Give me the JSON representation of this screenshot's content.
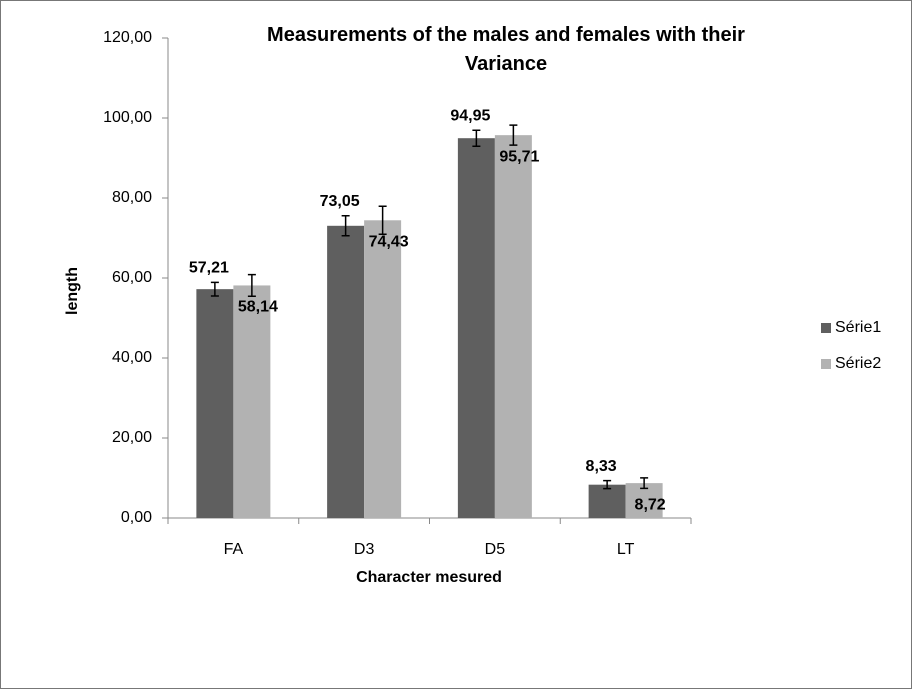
{
  "chart_data": {
    "type": "bar",
    "title": "Measurements of the males and females with their Variance",
    "x_label": "Character mesured",
    "y_label": "length",
    "categories": [
      "FA",
      "D3",
      "D5",
      "LT"
    ],
    "series": [
      {
        "name": "Série1",
        "color": "#5f5f5f",
        "values": [
          57.21,
          73.05,
          94.95,
          8.33
        ],
        "value_labels": [
          "57,21",
          "73,05",
          "94,95",
          "8,33"
        ],
        "errors": [
          1.7,
          2.5,
          2.0,
          1.0
        ]
      },
      {
        "name": "Série2",
        "color": "#b2b2b2",
        "values": [
          58.14,
          74.43,
          95.71,
          8.72
        ],
        "value_labels": [
          "58,14",
          "74,43",
          "95,71",
          "8,72"
        ],
        "errors": [
          2.7,
          3.5,
          2.5,
          1.3
        ]
      }
    ],
    "ylim": [
      0,
      120
    ],
    "yticks": [
      {
        "value": 0,
        "label": "0,00"
      },
      {
        "value": 20,
        "label": "20,00"
      },
      {
        "value": 40,
        "label": "40,00"
      },
      {
        "value": 60,
        "label": "60,00"
      },
      {
        "value": 80,
        "label": "80,00"
      },
      {
        "value": 100,
        "label": "100,00"
      },
      {
        "value": 120,
        "label": "120,00"
      }
    ],
    "legend": "right"
  }
}
